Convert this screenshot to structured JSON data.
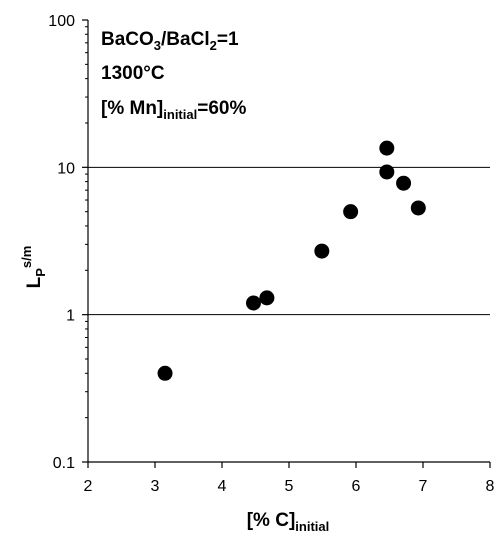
{
  "chart_data": {
    "type": "scatter",
    "xlabel": {
      "main": "[% C]",
      "sub": "initial"
    },
    "ylabel": {
      "main": "L",
      "sub": "P",
      "sup": "s/m"
    },
    "xlim": [
      2,
      8
    ],
    "ylim": [
      0.1,
      100
    ],
    "y_scale": "log",
    "x_ticks": [
      "2",
      "3",
      "4",
      "5",
      "6",
      "7",
      "8"
    ],
    "y_ticks": [
      "0.1",
      "1",
      "10",
      "100"
    ],
    "grid": "horizontal lines at 1 and 10",
    "legend": "none",
    "marker_color": "#000000",
    "annotations": {
      "line1": {
        "a": "BaCO",
        "a_sub": "3",
        "b": "/BaCl",
        "b_sub": "2",
        "c": "=1"
      },
      "line2": "1300°C",
      "line3": {
        "main": "[% Mn]",
        "sub": "initial",
        "tail": "=60%"
      }
    },
    "points": [
      {
        "x": 3.15,
        "y": 0.4
      },
      {
        "x": 4.47,
        "y": 1.2
      },
      {
        "x": 4.67,
        "y": 1.3
      },
      {
        "x": 5.49,
        "y": 2.7
      },
      {
        "x": 5.92,
        "y": 5.0
      },
      {
        "x": 6.46,
        "y": 13.5
      },
      {
        "x": 6.46,
        "y": 9.3
      },
      {
        "x": 6.71,
        "y": 7.8
      },
      {
        "x": 6.93,
        "y": 5.3
      }
    ]
  }
}
